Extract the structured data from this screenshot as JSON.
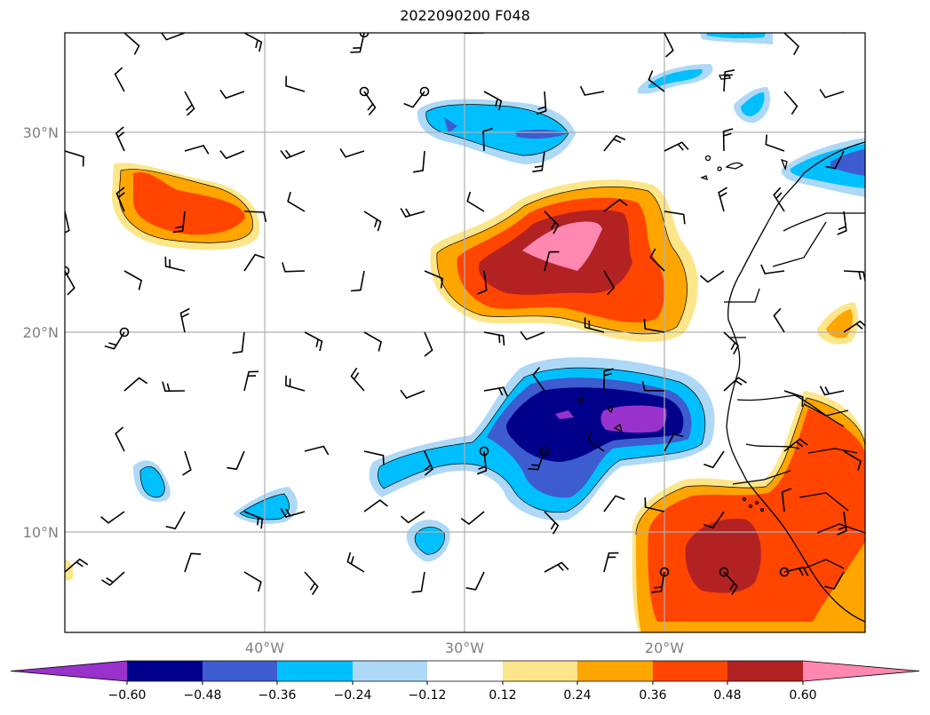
{
  "map": {
    "title": "2022090200 F048",
    "lat_labels": [
      "30°N",
      "20°N",
      "10°N"
    ],
    "lon_labels": [
      "40°W",
      "30°W",
      "20°W"
    ]
  },
  "colorbar": {
    "ticks": [
      "−0.60",
      "−0.48",
      "−0.36",
      "−0.24",
      "−0.12",
      "0.12",
      "0.24",
      "0.36",
      "0.48",
      "0.60"
    ],
    "colors": [
      "#9932cc",
      "#00008b",
      "#3c5ccf",
      "#00bfff",
      "#add8f6",
      "#ffffff",
      "#fde68a",
      "#ffa500",
      "#ff4500",
      "#b22222",
      "#ff88b0"
    ]
  }
}
